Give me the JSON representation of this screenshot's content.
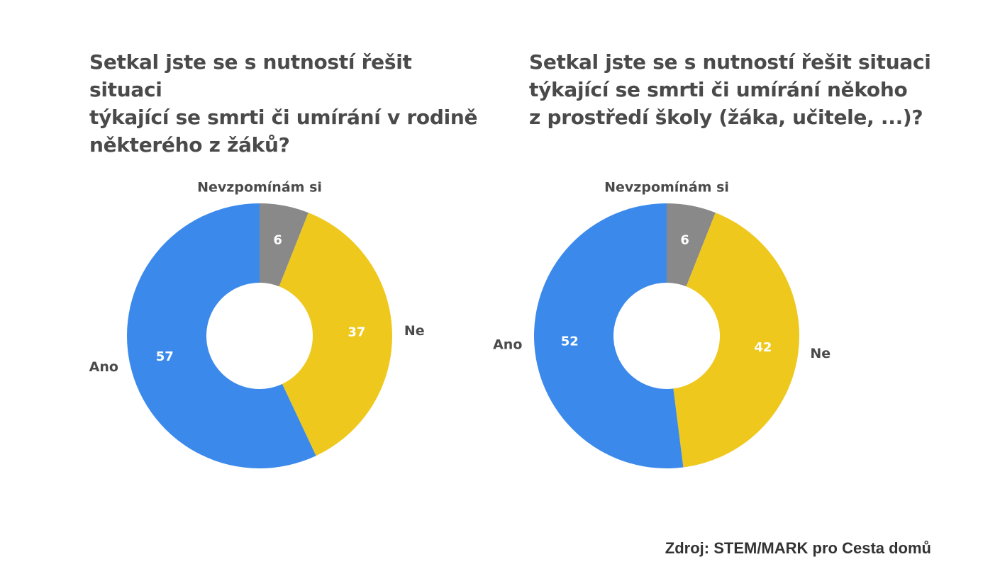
{
  "source": "Zdroj: STEM/MARK pro Cesta domů",
  "colors": {
    "Ano": "#3c89ec",
    "Ne": "#eec81c",
    "Nevzpomínám si": "#898989",
    "title": "#4a4a4a",
    "label": "#4a4a4a",
    "value_label": "#ffffff"
  },
  "chart_data": [
    {
      "type": "pie",
      "style": "donut",
      "title": "Setkal jste se s nutností řešit situaci\ntýkající se smrti či umírání v rodině\nněkterého z žáků?",
      "slices": [
        {
          "label": "Nevzpomínám si",
          "value": 6
        },
        {
          "label": "Ne",
          "value": 37
        },
        {
          "label": "Ano",
          "value": 57
        }
      ]
    },
    {
      "type": "pie",
      "style": "donut",
      "title": "Setkal jste se s nutností řešit situaci\ntýkající se smrti či umírání někoho\nz prostředí školy (žáka, učitele, ...)?",
      "slices": [
        {
          "label": "Nevzpomínám si",
          "value": 6
        },
        {
          "label": "Ne",
          "value": 42
        },
        {
          "label": "Ano",
          "value": 52
        }
      ]
    }
  ]
}
